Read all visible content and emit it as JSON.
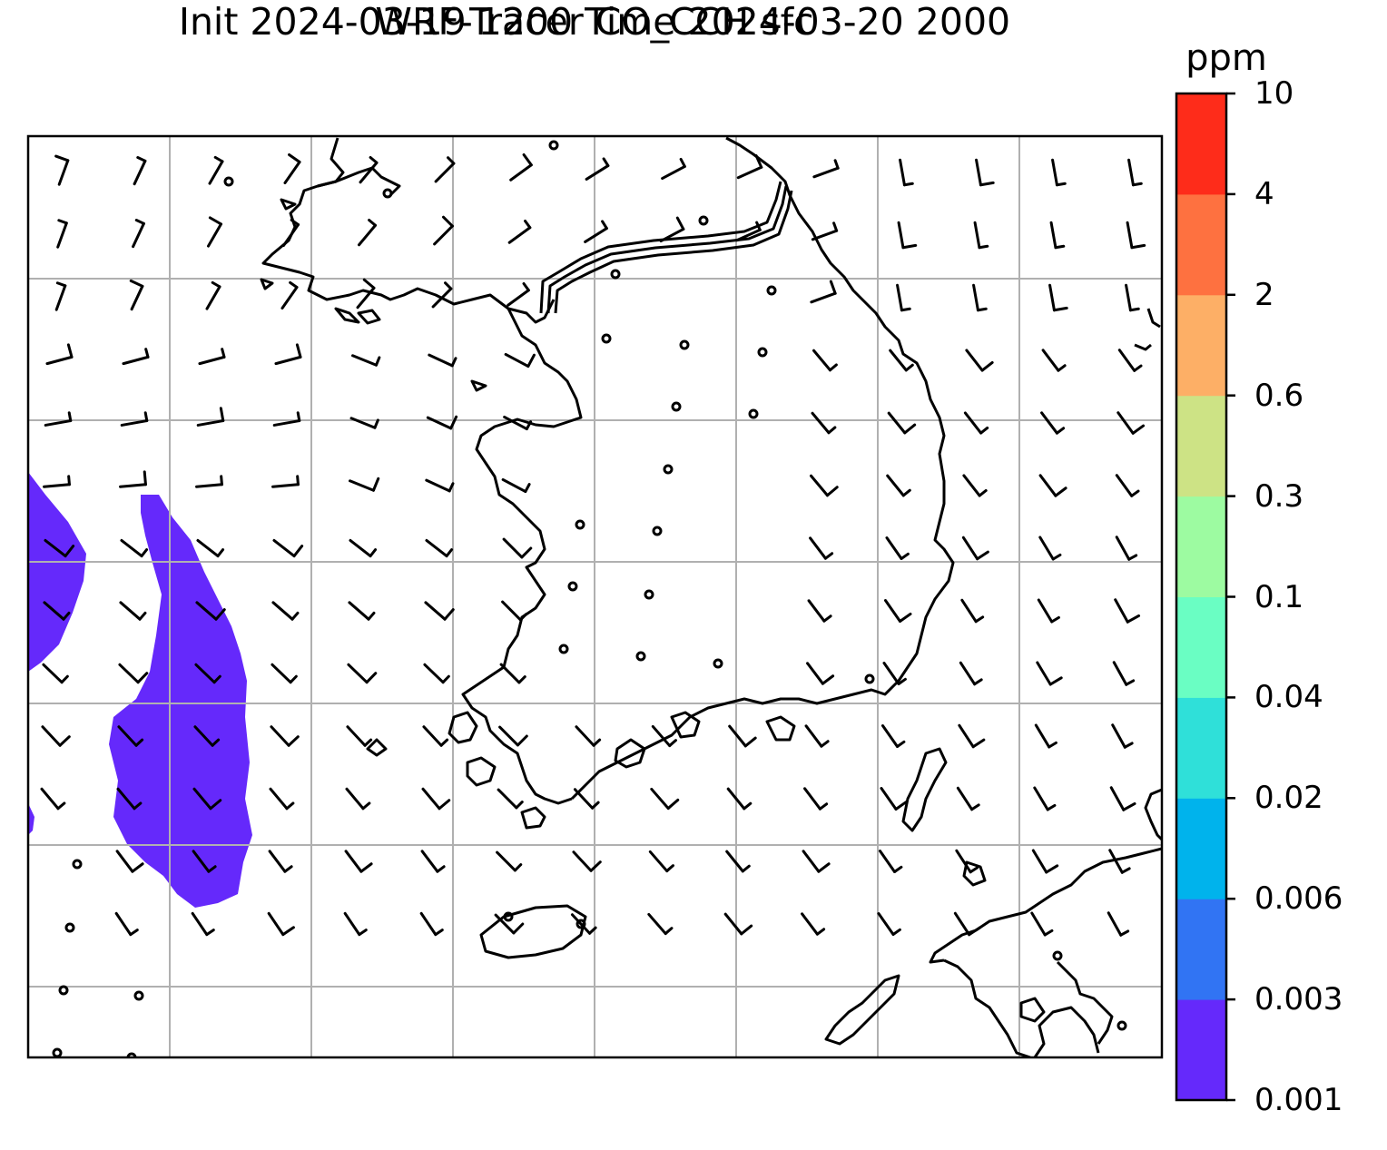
{
  "title": {
    "line1": "WRF-Tracer CO_CCH sfc",
    "line2": "Init 2024-03-19 1200 Time 2024-03-20 2000"
  },
  "colorbar": {
    "unit": "ppm",
    "levels": [
      "0.001",
      "0.003",
      "0.006",
      "0.02",
      "0.04",
      "0.1",
      "0.3",
      "0.6",
      "2",
      "4",
      "10"
    ],
    "colors": [
      "#6529fb",
      "#3174f3",
      "#00b3ec",
      "#2fe0d9",
      "#6afec3",
      "#9dfba1",
      "#cde385",
      "#fdaf66",
      "#fe7140",
      "#fe2c1a"
    ]
  },
  "map": {
    "graticule": true,
    "coastline_color": "#000000",
    "tracer_fill_color": "#6529fb",
    "tracer_level": "0.001–0.003 ppm (west of peninsula)",
    "wind_barbs": "black, half/full barbs across domain"
  }
}
